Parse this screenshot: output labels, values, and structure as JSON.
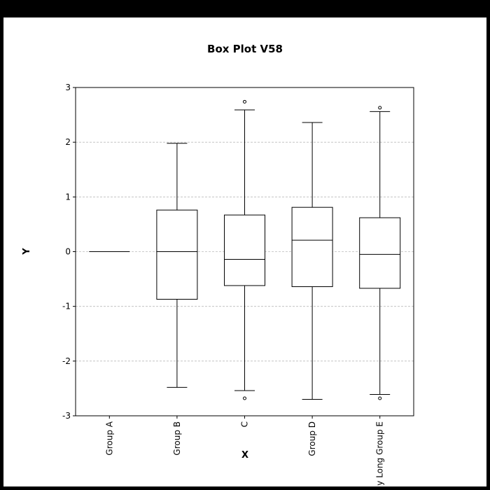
{
  "chart_data": {
    "type": "box",
    "title": "Box Plot V58",
    "xlabel": "X",
    "ylabel": "Y",
    "ylim": [
      -3,
      3
    ],
    "yticks": [
      -3,
      -2,
      -1,
      0,
      1,
      2,
      3
    ],
    "ytick_labels": [
      "-3",
      "-2",
      "-1",
      "0",
      "1",
      "2",
      "3"
    ],
    "grid": "y-dashed",
    "categories": [
      "Group A",
      "Group B",
      "C",
      "Group D",
      "y Long Group E"
    ],
    "boxes": [
      {
        "whisker_low": 0,
        "q1": 0,
        "median": 0,
        "q3": 0,
        "whisker_high": 0,
        "outliers": []
      },
      {
        "whisker_low": -2.48,
        "q1": -0.87,
        "median": 0.0,
        "q3": 0.76,
        "whisker_high": 1.98,
        "outliers": []
      },
      {
        "whisker_low": -2.54,
        "q1": -0.62,
        "median": -0.14,
        "q3": 0.67,
        "whisker_high": 2.59,
        "outliers": [
          2.74,
          -2.68
        ]
      },
      {
        "whisker_low": -2.7,
        "q1": -0.64,
        "median": 0.21,
        "q3": 0.81,
        "whisker_high": 2.36,
        "outliers": []
      },
      {
        "whisker_low": -2.61,
        "q1": -0.67,
        "median": -0.05,
        "q3": 0.62,
        "whisker_high": 2.56,
        "outliers": [
          2.63,
          -2.68
        ]
      }
    ]
  },
  "colors": {
    "background": "#000000",
    "plot_background": "#ffffff",
    "line": "#000000",
    "grid": "#bbbbbb"
  }
}
